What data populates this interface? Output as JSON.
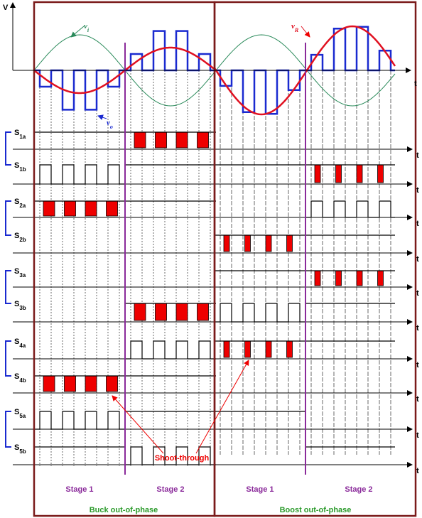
{
  "axis": {
    "y_label": "V",
    "t_labels": [
      "t",
      "t",
      "t",
      "t",
      "t",
      "t",
      "t",
      "t",
      "t",
      "t",
      "t"
    ]
  },
  "waveform_labels": [
    {
      "name": "v",
      "sub": "i"
    },
    {
      "name": "v",
      "sub": "o"
    },
    {
      "name": "v",
      "sub": "R"
    }
  ],
  "signals": [
    {
      "name": "S",
      "sub": "1a"
    },
    {
      "name": "S",
      "sub": "1b"
    },
    {
      "name": "S",
      "sub": "2a"
    },
    {
      "name": "S",
      "sub": "2b"
    },
    {
      "name": "S",
      "sub": "3a"
    },
    {
      "name": "S",
      "sub": "3b"
    },
    {
      "name": "S",
      "sub": "4a"
    },
    {
      "name": "S",
      "sub": "4b"
    },
    {
      "name": "S",
      "sub": "5a"
    },
    {
      "name": "S",
      "sub": "5b"
    }
  ],
  "annotation": "Shoot-through",
  "stages": [
    "Stage 1",
    "Stage 2",
    "Stage 1",
    "Stage 2"
  ],
  "modes": [
    "Buck out-of-phase",
    "Boost out-of-phase"
  ]
}
